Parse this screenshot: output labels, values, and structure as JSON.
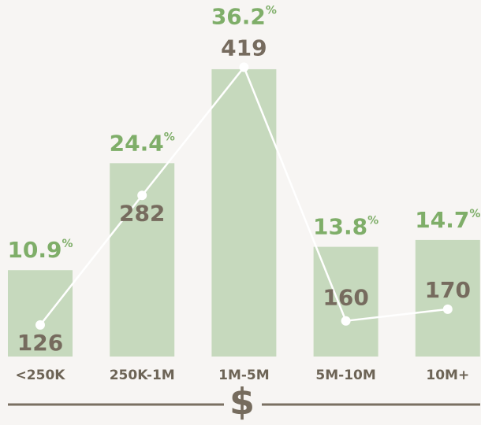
{
  "chart_data": {
    "type": "bar",
    "categories": [
      "<250K",
      "250K-1M",
      "1M-5M",
      "5M-10M",
      "10M+"
    ],
    "series": [
      {
        "color": "#c6d9bd",
        "values": [
          126,
          282,
          419,
          160,
          170
        ]
      }
    ],
    "shares": {
      "color": "#7fae69",
      "values": [
        10.9,
        24.4,
        36.2,
        13.8,
        14.7
      ],
      "value_labels": [
        "10.9%",
        "24.4%",
        "36.2%",
        "13.8%",
        "14.7%"
      ]
    },
    "line": {
      "color": "#ffffff",
      "values": [
        46,
        235,
        422,
        52,
        69
      ]
    },
    "ylim": [
      0,
      520
    ],
    "axis_label": "$"
  }
}
